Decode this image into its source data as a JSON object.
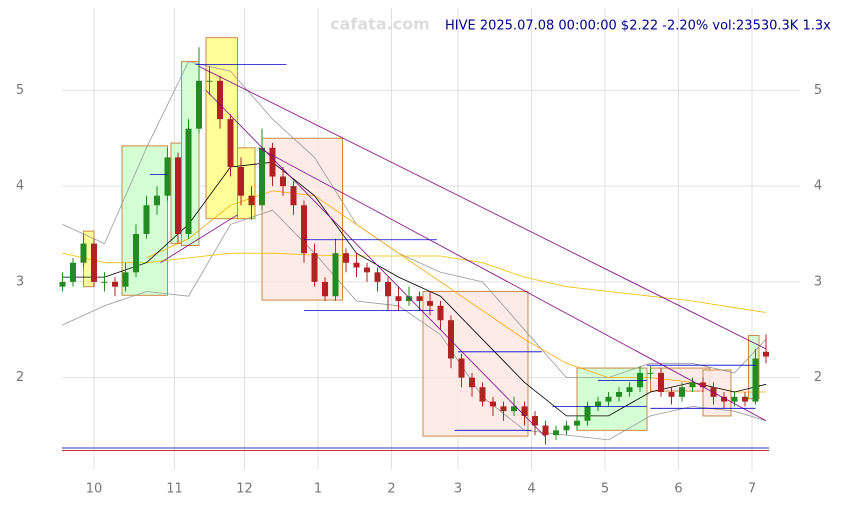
{
  "chart_data": {
    "type": "candlestick",
    "watermark": "cafata.com",
    "title": "HIVE 2025.07.08 00:00:00 $2.22 -2.20% vol:23530.3K 1.3x",
    "xlim": [
      -1,
      203
    ],
    "ylim": [
      1.14,
      5.86
    ],
    "xticks": [
      {
        "value": 9,
        "label": "10"
      },
      {
        "value": 32,
        "label": "11"
      },
      {
        "value": 52,
        "label": "12"
      },
      {
        "value": 73,
        "label": "1"
      },
      {
        "value": 94,
        "label": "2"
      },
      {
        "value": 113,
        "label": "3"
      },
      {
        "value": 134,
        "label": "4"
      },
      {
        "value": 155,
        "label": "5"
      },
      {
        "value": 176,
        "label": "6"
      },
      {
        "value": 197,
        "label": "7"
      }
    ],
    "yticks": [
      2,
      3,
      4,
      5
    ],
    "grid": true,
    "up_color": "#228b22",
    "down_color": "#b22222",
    "x": [
      0,
      3,
      6,
      9,
      12,
      15,
      18,
      21,
      24,
      27,
      30,
      33,
      36,
      39,
      42,
      45,
      48,
      51,
      54,
      57,
      60,
      63,
      66,
      69,
      72,
      75,
      78,
      81,
      84,
      87,
      90,
      93,
      96,
      99,
      102,
      105,
      108,
      111,
      114,
      117,
      120,
      123,
      126,
      129,
      132,
      135,
      138,
      141,
      144,
      147,
      150,
      153,
      156,
      159,
      162,
      165,
      168,
      171,
      174,
      177,
      180,
      183,
      186,
      189,
      192,
      195,
      198,
      201
    ],
    "open": [
      2.95,
      3.0,
      3.2,
      3.4,
      3.0,
      3.0,
      2.95,
      3.1,
      3.5,
      3.8,
      3.9,
      4.3,
      3.5,
      4.6,
      5.1,
      5.1,
      4.7,
      4.2,
      3.9,
      3.8,
      4.4,
      4.1,
      4.0,
      3.8,
      3.3,
      3.0,
      2.85,
      3.3,
      3.2,
      3.15,
      3.1,
      3.0,
      2.85,
      2.8,
      2.85,
      2.8,
      2.75,
      2.6,
      2.2,
      2.0,
      1.9,
      1.75,
      1.7,
      1.65,
      1.7,
      1.6,
      1.5,
      1.4,
      1.45,
      1.5,
      1.55,
      1.7,
      1.75,
      1.8,
      1.85,
      1.9,
      2.05,
      2.05,
      1.85,
      1.8,
      1.9,
      1.95,
      1.9,
      1.8,
      1.75,
      1.8,
      1.75,
      2.27
    ],
    "high": [
      3.1,
      3.25,
      3.5,
      3.45,
      3.1,
      3.05,
      3.2,
      3.6,
      3.9,
      4.0,
      4.4,
      4.35,
      4.7,
      5.45,
      5.25,
      5.15,
      4.75,
      4.3,
      4.0,
      4.6,
      4.45,
      4.2,
      4.05,
      3.85,
      3.4,
      3.05,
      3.45,
      3.35,
      3.3,
      3.2,
      3.15,
      3.05,
      2.95,
      2.95,
      2.9,
      2.9,
      2.8,
      2.65,
      2.25,
      2.05,
      1.95,
      1.8,
      1.75,
      1.8,
      1.75,
      1.65,
      1.55,
      1.5,
      1.55,
      1.6,
      1.75,
      1.8,
      1.85,
      1.9,
      1.95,
      2.12,
      2.12,
      2.1,
      1.9,
      1.95,
      2.0,
      2.0,
      1.95,
      1.85,
      1.85,
      1.85,
      2.3,
      2.45
    ],
    "low": [
      2.9,
      2.95,
      3.15,
      2.95,
      2.9,
      2.85,
      2.9,
      3.05,
      3.45,
      3.7,
      3.85,
      3.4,
      3.45,
      4.55,
      4.95,
      4.6,
      4.1,
      3.8,
      3.65,
      3.75,
      4.0,
      3.9,
      3.7,
      3.2,
      2.95,
      2.8,
      2.8,
      3.1,
      3.05,
      3.0,
      2.9,
      2.7,
      2.7,
      2.75,
      2.7,
      2.65,
      2.5,
      2.1,
      1.9,
      1.8,
      1.7,
      1.6,
      1.55,
      1.6,
      1.5,
      1.4,
      1.3,
      1.35,
      1.4,
      1.45,
      1.5,
      1.65,
      1.7,
      1.75,
      1.8,
      1.85,
      1.98,
      1.8,
      1.72,
      1.75,
      1.85,
      1.85,
      1.72,
      1.68,
      1.7,
      1.7,
      1.72,
      2.15
    ],
    "close": [
      3.0,
      3.2,
      3.4,
      3.0,
      3.0,
      2.95,
      3.1,
      3.5,
      3.8,
      3.9,
      4.3,
      3.5,
      4.6,
      5.1,
      5.1,
      4.7,
      4.2,
      3.9,
      3.8,
      4.4,
      4.1,
      4.0,
      3.8,
      3.3,
      3.0,
      2.85,
      3.3,
      3.2,
      3.15,
      3.1,
      3.0,
      2.85,
      2.8,
      2.85,
      2.8,
      2.75,
      2.6,
      2.2,
      2.0,
      1.9,
      1.75,
      1.7,
      1.65,
      1.7,
      1.6,
      1.5,
      1.4,
      1.45,
      1.5,
      1.55,
      1.7,
      1.75,
      1.8,
      1.85,
      1.9,
      2.05,
      2.05,
      1.85,
      1.8,
      1.9,
      1.95,
      1.9,
      1.8,
      1.75,
      1.8,
      1.75,
      2.2,
      2.22
    ],
    "zones": [
      {
        "x": [
          6,
          9
        ],
        "y": [
          2.95,
          3.53
        ],
        "color": "#ffff88"
      },
      {
        "x": [
          17,
          30
        ],
        "y": [
          2.86,
          4.42
        ],
        "color": "#ccffcc"
      },
      {
        "x": [
          31,
          34
        ],
        "y": [
          3.4,
          4.45
        ],
        "color": "#ccffcc"
      },
      {
        "x": [
          34,
          39
        ],
        "y": [
          3.38,
          5.3
        ],
        "color": "#ccffcc"
      },
      {
        "x": [
          41,
          50
        ],
        "y": [
          3.66,
          5.55
        ],
        "color": "#ffff88"
      },
      {
        "x": [
          50,
          55
        ],
        "y": [
          3.66,
          4.4
        ],
        "color": "#ffff88"
      },
      {
        "x": [
          57,
          80
        ],
        "y": [
          2.81,
          4.5
        ],
        "color": "#fde8e4"
      },
      {
        "x": [
          103,
          133
        ],
        "y": [
          1.39,
          2.9
        ],
        "color": "#fde8e4"
      },
      {
        "x": [
          147,
          167
        ],
        "y": [
          1.45,
          2.1
        ],
        "color": "#ccffcc"
      },
      {
        "x": [
          168,
          185
        ],
        "y": [
          1.86,
          2.1
        ],
        "color": "#fde8e4"
      },
      {
        "x": [
          183,
          191
        ],
        "y": [
          1.6,
          2.08
        ],
        "color": "#fde8e4"
      },
      {
        "x": [
          196,
          199
        ],
        "y": [
          1.78,
          2.44
        ],
        "color": "#ccffcc"
      }
    ],
    "indicator_x": [
      0,
      12,
      24,
      36,
      48,
      60,
      72,
      84,
      96,
      108,
      120,
      132,
      144,
      156,
      168,
      180,
      192,
      201
    ],
    "indicators": [
      {
        "color": "#999999",
        "values": [
          3.6,
          3.4,
          4.4,
          5.3,
          5.2,
          4.7,
          4.3,
          3.6,
          3.3,
          3.1,
          3.0,
          2.5,
          2.0,
          2.0,
          2.15,
          2.15,
          2.05,
          2.4
        ]
      },
      {
        "color": "#999999",
        "values": [
          2.55,
          2.75,
          2.9,
          2.85,
          3.6,
          3.75,
          3.3,
          2.8,
          2.75,
          2.45,
          1.8,
          1.45,
          1.4,
          1.35,
          1.6,
          1.7,
          1.65,
          1.55
        ]
      },
      {
        "color": "#f0c000",
        "values": [
          3.3,
          3.2,
          3.2,
          3.25,
          3.3,
          3.3,
          3.28,
          3.27,
          3.27,
          3.27,
          3.2,
          3.05,
          2.95,
          2.9,
          2.85,
          2.8,
          2.73,
          2.68
        ]
      },
      {
        "color": "#ffa500",
        "values": [
          null,
          null,
          3.25,
          3.45,
          3.8,
          3.95,
          3.9,
          3.6,
          3.3,
          3.0,
          2.7,
          2.4,
          2.15,
          2.0,
          2.0,
          1.95,
          1.85,
          1.85
        ]
      },
      {
        "color": "#000000",
        "values": [
          3.05,
          3.05,
          3.2,
          3.6,
          4.2,
          4.25,
          3.9,
          3.3,
          3.05,
          2.85,
          2.4,
          1.95,
          1.6,
          1.6,
          1.85,
          1.95,
          1.85,
          1.93
        ]
      }
    ],
    "trend_color": "#800080",
    "trend_lines": [
      {
        "x": [
          39,
          201
        ],
        "y": [
          5.25,
          2.3
        ]
      },
      {
        "x": [
          56,
          201
        ],
        "y": [
          4.4,
          1.55
        ]
      },
      {
        "x": [
          41,
          138
        ],
        "y": [
          5.0,
          1.38
        ]
      },
      {
        "x": [
          28,
          50
        ],
        "y": [
          3.2,
          3.7
        ]
      }
    ],
    "level_color": "#0000cc",
    "levels": [
      {
        "x": [
          38,
          64
        ],
        "value": 5.27
      },
      {
        "x": [
          25,
          30
        ],
        "value": 4.12
      },
      {
        "x": [
          69,
          107
        ],
        "value": 3.44
      },
      {
        "x": [
          69,
          106
        ],
        "value": 2.7
      },
      {
        "x": [
          113,
          137
        ],
        "value": 2.27
      },
      {
        "x": [
          112,
          134
        ],
        "value": 1.45
      },
      {
        "x": [
          140,
          167
        ],
        "value": 1.7
      },
      {
        "x": [
          153,
          167
        ],
        "value": 1.97
      },
      {
        "x": [
          167,
          198
        ],
        "value": 2.13
      },
      {
        "x": [
          168,
          198
        ],
        "value": 1.68
      }
    ]
  }
}
